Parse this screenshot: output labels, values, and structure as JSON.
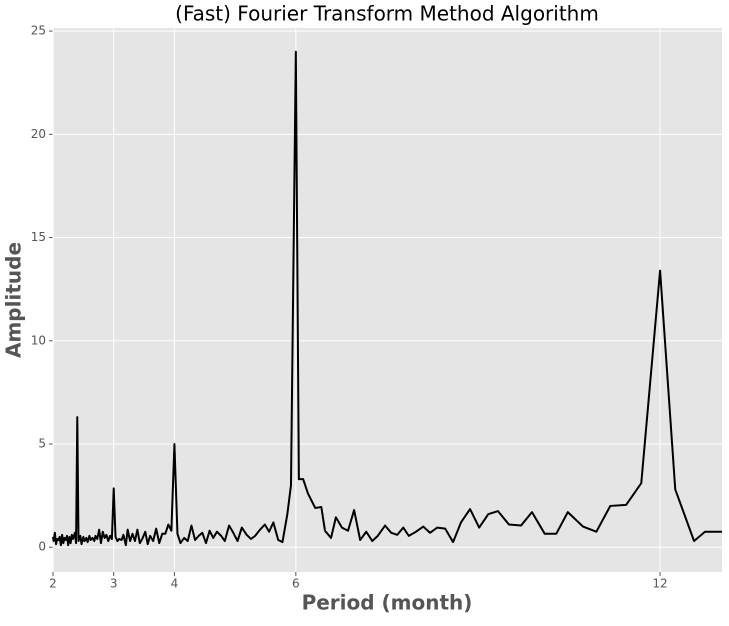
{
  "chart_data": {
    "type": "line",
    "title": "(Fast) Fourier Transform Method Algorithm",
    "x_label": "Period (month)",
    "y_label": "Amplitude",
    "xlim": [
      2,
      13.02
    ],
    "ylim": [
      -1.2,
      25.15
    ],
    "xticks": [
      2,
      3,
      4,
      6,
      12
    ],
    "yticks": [
      0,
      5,
      10,
      15,
      20,
      25
    ],
    "grid": true,
    "series": [
      {
        "color": "#000000",
        "x": [
          2.0,
          2.01,
          2.03,
          2.05,
          2.07,
          2.09,
          2.11,
          2.13,
          2.15,
          2.17,
          2.19,
          2.21,
          2.23,
          2.25,
          2.27,
          2.29,
          2.31,
          2.33,
          2.36,
          2.38,
          2.4,
          2.42,
          2.45,
          2.47,
          2.5,
          2.52,
          2.55,
          2.57,
          2.6,
          2.62,
          2.65,
          2.68,
          2.7,
          2.73,
          2.76,
          2.79,
          2.82,
          2.85,
          2.88,
          2.91,
          2.94,
          2.97,
          3.0,
          3.03,
          3.06,
          3.09,
          3.13,
          3.16,
          3.2,
          3.23,
          3.27,
          3.31,
          3.35,
          3.39,
          3.43,
          3.47,
          3.52,
          3.56,
          3.6,
          3.65,
          3.7,
          3.75,
          3.8,
          3.85,
          3.9,
          3.95,
          4.0,
          4.05,
          4.1,
          4.16,
          4.22,
          4.28,
          4.34,
          4.4,
          4.46,
          4.52,
          4.58,
          4.64,
          4.7,
          4.77,
          4.83,
          4.9,
          4.97,
          5.04,
          5.11,
          5.19,
          5.26,
          5.33,
          5.41,
          5.49,
          5.56,
          5.63,
          5.71,
          5.78,
          5.86,
          5.92,
          6.0,
          6.05,
          6.12,
          6.2,
          6.32,
          6.42,
          6.48,
          6.58,
          6.66,
          6.76,
          6.86,
          6.96,
          7.06,
          7.16,
          7.26,
          7.35,
          7.47,
          7.57,
          7.67,
          7.77,
          7.86,
          7.98,
          8.1,
          8.21,
          8.33,
          8.46,
          8.59,
          8.72,
          8.87,
          9.02,
          9.17,
          9.33,
          9.51,
          9.71,
          9.89,
          10.1,
          10.29,
          10.48,
          10.73,
          10.95,
          11.18,
          11.44,
          11.69,
          12.0,
          12.25,
          12.56,
          12.74,
          13.02
        ],
        "values": [
          0.5,
          0.3,
          0.7,
          0.15,
          0.4,
          0.35,
          0.5,
          0.1,
          0.6,
          0.2,
          0.45,
          0.35,
          0.55,
          0.1,
          0.5,
          0.2,
          0.6,
          0.4,
          0.7,
          0.2,
          6.3,
          0.3,
          0.55,
          0.15,
          0.5,
          0.3,
          0.45,
          0.25,
          0.55,
          0.35,
          0.45,
          0.3,
          0.55,
          0.4,
          0.85,
          0.2,
          0.75,
          0.45,
          0.6,
          0.3,
          0.55,
          0.4,
          2.85,
          0.5,
          0.3,
          0.4,
          0.35,
          0.6,
          0.1,
          0.85,
          0.3,
          0.65,
          0.3,
          0.85,
          0.2,
          0.4,
          0.75,
          0.15,
          0.55,
          0.3,
          0.9,
          0.2,
          0.65,
          0.65,
          1.1,
          0.8,
          5.0,
          0.65,
          0.2,
          0.45,
          0.3,
          1.05,
          0.35,
          0.55,
          0.7,
          0.2,
          0.8,
          0.45,
          0.75,
          0.55,
          0.3,
          1.05,
          0.7,
          0.3,
          0.95,
          0.6,
          0.4,
          0.55,
          0.85,
          1.1,
          0.75,
          1.2,
          0.35,
          0.25,
          1.6,
          3.0,
          24.0,
          3.3,
          3.3,
          2.6,
          1.9,
          1.95,
          0.8,
          0.45,
          1.45,
          0.95,
          0.8,
          1.8,
          0.35,
          0.75,
          0.3,
          0.55,
          1.05,
          0.7,
          0.6,
          0.95,
          0.55,
          0.75,
          1.0,
          0.7,
          0.95,
          0.9,
          0.25,
          1.2,
          1.85,
          0.95,
          1.6,
          1.75,
          1.1,
          1.05,
          1.7,
          0.65,
          0.65,
          1.7,
          1.0,
          0.75,
          2.0,
          2.05,
          3.1,
          13.4,
          2.8,
          0.3,
          0.75,
          0.75
        ]
      }
    ]
  }
}
